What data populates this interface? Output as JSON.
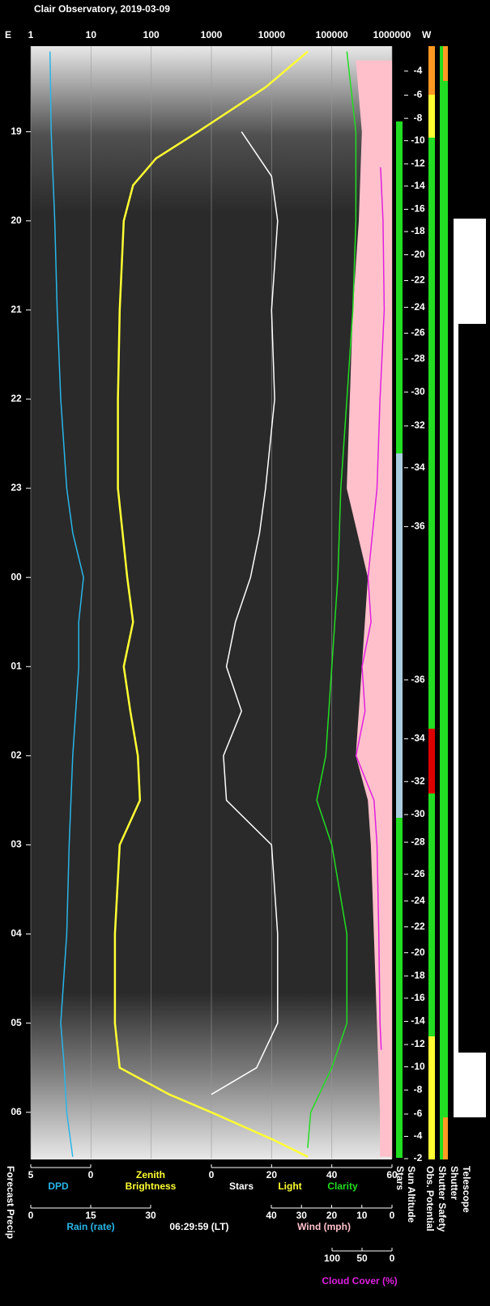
{
  "chart_data": {
    "type": "line",
    "title": "Clair Observatory, 2019-03-09",
    "east_label": "E",
    "west_label": "W",
    "time_stamp": "06:29:59 (LT)",
    "light_label": "Light",
    "log_x": true,
    "grid": true,
    "xlim": [
      1,
      1000000
    ],
    "xticks": [
      1,
      10,
      100,
      1000,
      10000,
      100000,
      1000000
    ],
    "tlim": [
      18.04,
      30.52
    ],
    "tticks": [
      19,
      20,
      21,
      22,
      23,
      {
        "value": 24,
        "label": "00"
      },
      {
        "value": 25,
        "label": "01"
      },
      {
        "value": 26,
        "label": "02"
      },
      {
        "value": 27,
        "label": "03"
      },
      {
        "value": 28,
        "label": "04"
      },
      {
        "value": 29,
        "label": "05"
      },
      {
        "value": 30,
        "label": "06"
      }
    ],
    "bottom_axes": {
      "dpd": {
        "lim": [
          5,
          0
        ],
        "ticks": [
          5,
          0
        ]
      },
      "stars": {
        "lim": [
          0,
          60
        ],
        "ticks": [
          0,
          20,
          40,
          60
        ]
      },
      "rain": {
        "name": "Rain (rate)",
        "lim": [
          0,
          30
        ],
        "ticks": [
          0,
          15,
          30
        ]
      },
      "wind": {
        "lim": [
          40,
          0
        ],
        "ticks": [
          40,
          30,
          20,
          10,
          0
        ]
      },
      "cloud": {
        "lim": [
          100,
          0
        ],
        "ticks": [
          100,
          50,
          0
        ]
      }
    },
    "series": [
      {
        "name": "Wind (mph)",
        "color": "#ffc0cb",
        "axis": "wind",
        "kind": "area",
        "x": [
          18.2,
          19,
          20,
          21,
          22,
          23,
          24,
          25,
          26,
          26.5,
          27,
          28,
          29,
          30,
          30.5
        ],
        "values": [
          12,
          10,
          11,
          13,
          14,
          15,
          8,
          10,
          12,
          8,
          7,
          6,
          5,
          4,
          4
        ]
      },
      {
        "name": "DPD",
        "color": "#29b6e8",
        "axis": "dpd",
        "x": [
          18.1,
          19,
          20,
          21,
          22,
          23,
          23.5,
          24,
          24.5,
          25,
          26,
          27,
          28,
          29,
          29.5,
          30,
          30.5
        ],
        "values": [
          3.4,
          3.3,
          3,
          2.8,
          2.5,
          2,
          1.5,
          0.6,
          1,
          1,
          1.5,
          1.8,
          2,
          2.5,
          2.2,
          2,
          1.5
        ]
      },
      {
        "name": "Zenith Brightness",
        "color": "#ffff33",
        "axis": "top",
        "x": [
          18.1,
          18.5,
          19,
          19.3,
          19.6,
          20,
          21,
          22,
          23,
          24,
          24.5,
          25,
          25.5,
          26,
          26.5,
          27,
          28,
          29,
          29.5,
          29.8,
          30,
          30.3,
          30.5
        ],
        "values": [
          40000,
          8000,
          600,
          120,
          50,
          35,
          30,
          28,
          28,
          40,
          50,
          35,
          45,
          60,
          65,
          30,
          25,
          25,
          30,
          200,
          1000,
          10000,
          40000
        ]
      },
      {
        "name": "Stars",
        "color": "#ffffff",
        "axis": "stars",
        "x": [
          19,
          19.5,
          20,
          21,
          22,
          23,
          23.5,
          24,
          24.5,
          25,
          25.5,
          26,
          26.5,
          27,
          28,
          29,
          29.5,
          29.8
        ],
        "values": [
          10,
          20,
          22,
          20,
          21,
          18,
          16,
          13,
          8,
          5,
          10,
          4,
          5,
          20,
          22,
          22,
          15,
          0
        ]
      },
      {
        "name": "Clarity",
        "color": "#22dd22",
        "axis": "stars",
        "x": [
          18.1,
          19,
          20,
          21,
          22,
          23,
          24,
          25,
          26,
          26.5,
          27,
          28,
          29,
          29.5,
          30,
          30.4
        ],
        "values": [
          45,
          48,
          48,
          47,
          45,
          43,
          42,
          40,
          38,
          35,
          40,
          45,
          45,
          40,
          33,
          32
        ]
      },
      {
        "name": "Cloud Cover (%)",
        "color": "#e020e0",
        "axis": "cloud",
        "x": [
          19.4,
          20,
          21,
          22,
          23,
          24,
          24.5,
          25,
          25.5,
          26,
          26.5,
          27,
          28,
          29,
          29.3
        ],
        "values": [
          19,
          15,
          13,
          20,
          25,
          40,
          35,
          50,
          45,
          60,
          30,
          25,
          22,
          20,
          18
        ]
      }
    ],
    "sun_altitude": {
      "x": [
        18.32,
        18.59,
        18.85,
        19.1,
        19.36,
        19.61,
        19.87,
        20.12,
        20.38,
        20.67,
        20.97,
        21.26,
        21.55,
        21.92,
        22.3,
        22.77,
        23.43,
        25.15,
        25.81,
        26.29,
        26.66,
        26.97,
        27.33,
        27.63,
        27.92,
        28.21,
        28.47,
        28.72,
        28.98,
        29.24,
        29.49,
        29.75,
        30.02,
        30.27,
        30.52
      ],
      "values": [
        -4,
        -6,
        -8,
        -10,
        -12,
        -14,
        -16,
        -18,
        -20,
        -22,
        -24,
        -26,
        -28,
        -30,
        -32,
        -34,
        -36,
        -36,
        -34,
        -32,
        -30,
        -28,
        -26,
        -24,
        -22,
        -20,
        -18,
        -16,
        -14,
        -12,
        -10,
        -8,
        -6,
        -4,
        -2
      ]
    },
    "status_labels": [
      "Forecast Precip",
      "Stars",
      "Sun Altitude",
      "Obs. Potential",
      "Shutter Safety",
      "Shutter",
      "Telescope"
    ]
  }
}
